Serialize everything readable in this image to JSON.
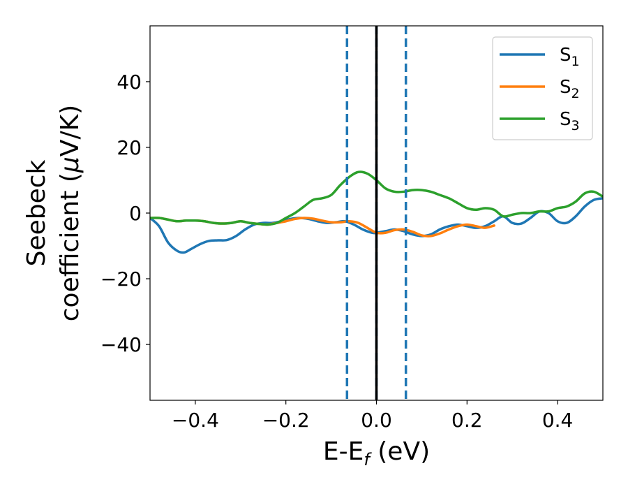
{
  "chart_data": {
    "type": "line",
    "title": "",
    "xlabel": {
      "main": "E-E",
      "sub": "f",
      "tail": " (eV)"
    },
    "ylabel": {
      "line1": "Seebeck",
      "line2": "coefficient  (",
      "mu": "μ",
      "line2_tail": "V/K)"
    },
    "xlim": [
      -0.5,
      0.5
    ],
    "ylim": [
      -57,
      57
    ],
    "xticks": [
      -0.4,
      -0.2,
      0.0,
      0.2,
      0.4
    ],
    "xtick_labels": [
      "−0.4",
      "−0.2",
      "0.0",
      "0.2",
      "0.4"
    ],
    "yticks": [
      -40,
      -20,
      0,
      20,
      40
    ],
    "ytick_labels": [
      "−40",
      "−20",
      "0",
      "20",
      "40"
    ],
    "grid": false,
    "legend_position": "top-right",
    "vlines": [
      {
        "x": -0.065,
        "style": "dashed",
        "color": "#1f77b4"
      },
      {
        "x": 0.065,
        "style": "dashed",
        "color": "#1f77b4"
      },
      {
        "x": 0.0,
        "style": "dashed",
        "color": "#1f77b4"
      },
      {
        "x": 0.0,
        "style": "solid",
        "color": "#000000"
      }
    ],
    "series": [
      {
        "name": "S",
        "sub": "1",
        "color": "#1f77b4",
        "x": [
          -0.5,
          -0.48,
          -0.46,
          -0.44,
          -0.425,
          -0.41,
          -0.39,
          -0.37,
          -0.35,
          -0.33,
          -0.31,
          -0.29,
          -0.27,
          -0.25,
          -0.23,
          -0.21,
          -0.19,
          -0.17,
          -0.15,
          -0.13,
          -0.11,
          -0.09,
          -0.07,
          -0.05,
          -0.03,
          -0.01,
          0.0,
          0.02,
          0.04,
          0.06,
          0.08,
          0.1,
          0.12,
          0.14,
          0.16,
          0.18,
          0.2,
          0.22,
          0.24,
          0.26,
          0.28,
          0.3,
          0.32,
          0.34,
          0.36,
          0.38,
          0.4,
          0.42,
          0.44,
          0.46,
          0.48,
          0.5
        ],
        "y": [
          -1.5,
          -4,
          -9,
          -11.5,
          -12,
          -11,
          -9.5,
          -8.5,
          -8.3,
          -8.2,
          -7,
          -5,
          -3.5,
          -3,
          -3,
          -2.5,
          -1.8,
          -1.5,
          -1.8,
          -2.5,
          -3,
          -2.8,
          -2.5,
          -3.5,
          -5,
          -6,
          -6,
          -5.5,
          -5,
          -5.5,
          -6.5,
          -7,
          -6.5,
          -5,
          -4,
          -3.5,
          -4,
          -4.5,
          -4,
          -2.5,
          -1,
          -3,
          -3.2,
          -1.5,
          0.5,
          0,
          -2.5,
          -3,
          -1,
          2,
          4,
          4.5
        ]
      },
      {
        "name": "S",
        "sub": "2",
        "color": "#ff7f0e",
        "x": [
          -0.5,
          -0.48,
          -0.46,
          -0.44,
          -0.42,
          -0.4,
          -0.38,
          -0.36,
          -0.34,
          -0.32,
          -0.3,
          -0.28,
          -0.26,
          -0.24,
          -0.22,
          -0.2,
          -0.18,
          -0.16,
          -0.14,
          -0.12,
          -0.1,
          -0.08,
          -0.06,
          -0.04,
          -0.02,
          0.0,
          0.02,
          0.04,
          0.06,
          0.08,
          0.1,
          0.12,
          0.14,
          0.16,
          0.18,
          0.2,
          0.22,
          0.24,
          0.26
        ],
        "y": [
          -1.5,
          -1.5,
          -2,
          -2.5,
          -2.3,
          -2.3,
          -2.5,
          -3,
          -3.2,
          -3,
          -2.5,
          -3,
          -3.3,
          -3.5,
          -3,
          -2.5,
          -1.8,
          -1.5,
          -1.7,
          -2.3,
          -2.8,
          -2.8,
          -2.5,
          -3,
          -4.5,
          -6,
          -6,
          -5.2,
          -5,
          -5.7,
          -6.8,
          -7,
          -6.2,
          -5,
          -4,
          -3.5,
          -4,
          -4.5,
          -3.8
        ]
      },
      {
        "name": "S",
        "sub": "3",
        "color": "#2ca02c",
        "x": [
          -0.5,
          -0.48,
          -0.46,
          -0.44,
          -0.42,
          -0.4,
          -0.38,
          -0.36,
          -0.34,
          -0.32,
          -0.3,
          -0.28,
          -0.26,
          -0.24,
          -0.22,
          -0.2,
          -0.18,
          -0.16,
          -0.14,
          -0.12,
          -0.1,
          -0.08,
          -0.06,
          -0.04,
          -0.02,
          0.0,
          0.02,
          0.04,
          0.06,
          0.08,
          0.1,
          0.12,
          0.14,
          0.16,
          0.18,
          0.2,
          0.22,
          0.24,
          0.26,
          0.28,
          0.3,
          0.32,
          0.34,
          0.36,
          0.38,
          0.4,
          0.42,
          0.44,
          0.46,
          0.48,
          0.5
        ],
        "y": [
          -1.5,
          -1.5,
          -2,
          -2.5,
          -2.3,
          -2.3,
          -2.5,
          -3,
          -3.2,
          -3,
          -2.5,
          -3,
          -3.3,
          -3.5,
          -3,
          -1.5,
          0,
          2,
          4,
          4.5,
          5.5,
          8.5,
          11,
          12.5,
          12,
          10,
          7.5,
          6.5,
          6.5,
          7,
          7,
          6.5,
          5.5,
          4.5,
          3,
          1.5,
          1,
          1.5,
          1,
          -1,
          -0.5,
          0,
          0,
          0.5,
          0.5,
          1.5,
          2,
          3.5,
          6,
          6.5,
          5
        ]
      }
    ]
  }
}
